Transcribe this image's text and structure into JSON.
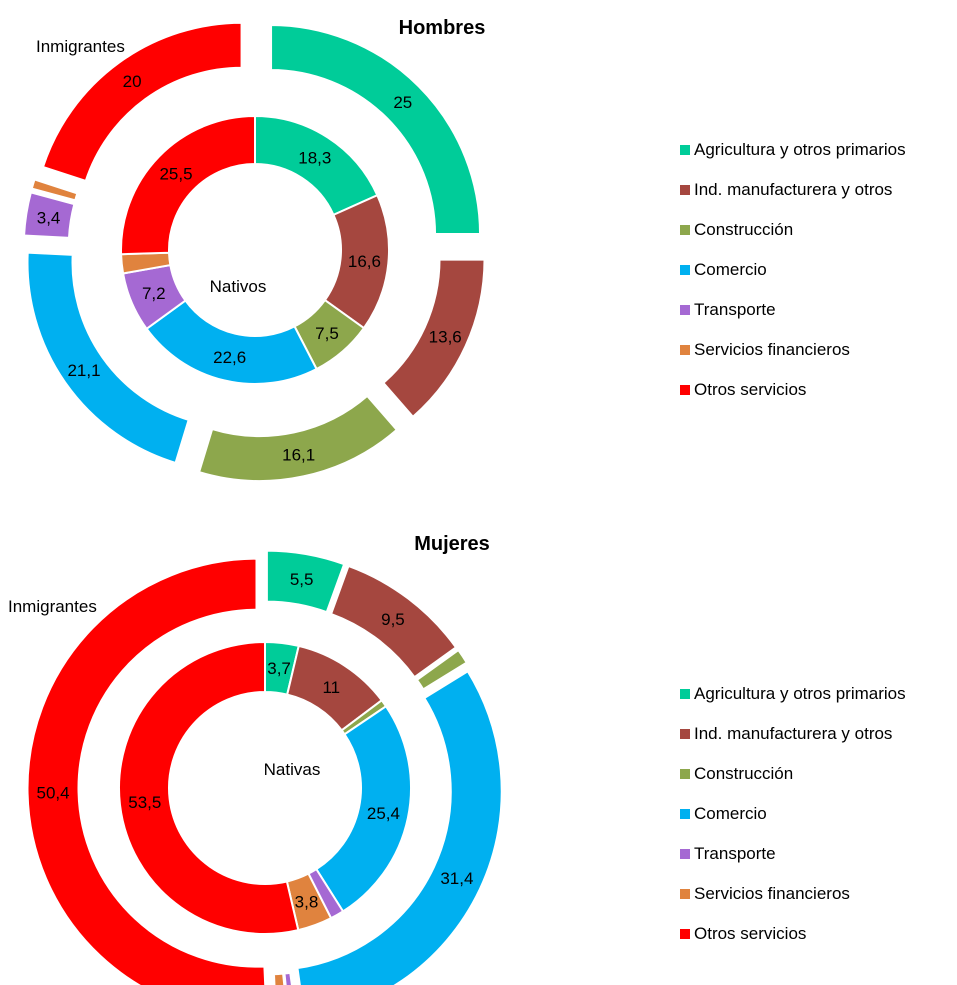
{
  "chart_data": [
    {
      "type": "donut",
      "title": "Hombres",
      "inner_ring_label": "Nativos",
      "outer_ring_label": "Inmigrantes",
      "categories": [
        "Agricultura y otros primarios",
        "Ind. manufacturera y otros",
        "Construcción",
        "Comercio",
        "Transporte",
        "Servicios financieros",
        "Otros servicios"
      ],
      "colors": [
        "#00CC99",
        "#A5473F",
        "#8DA74C",
        "#00B0F0",
        "#A569D3",
        "#E0833E",
        "#FF0000"
      ],
      "series": [
        {
          "name": "Nativos",
          "ring": "inner",
          "values": [
            18.3,
            16.6,
            7.5,
            22.6,
            7.2,
            2.3,
            25.5
          ],
          "labels": [
            "18,3",
            "16,6",
            "7,5",
            "22,6",
            "7,2",
            "",
            "25,5"
          ]
        },
        {
          "name": "Inmigrantes",
          "ring": "outer",
          "values": [
            25,
            13.6,
            16.1,
            21.1,
            3.4,
            0.8,
            20
          ],
          "labels": [
            "25",
            "13,6",
            "16,1",
            "21,1",
            "3,4",
            "",
            "20"
          ]
        }
      ],
      "legend": "right"
    },
    {
      "type": "donut",
      "title": "Mujeres",
      "inner_ring_label": "Nativas",
      "outer_ring_label": "Inmigrantes",
      "categories": [
        "Agricultura y otros primarios",
        "Ind. manufacturera y otros",
        "Construcción",
        "Comercio",
        "Transporte",
        "Servicios financieros",
        "Otros servicios"
      ],
      "colors": [
        "#00CC99",
        "#A5473F",
        "#8DA74C",
        "#00B0F0",
        "#A569D3",
        "#E0833E",
        "#FF0000"
      ],
      "series": [
        {
          "name": "Nativas",
          "ring": "inner",
          "values": [
            3.7,
            11,
            0.8,
            25.4,
            1.5,
            3.8,
            53.5
          ],
          "labels": [
            "3,7",
            "11",
            "",
            "25,4",
            "",
            "3,8",
            "53,5"
          ]
        },
        {
          "name": "Inmigrantes",
          "ring": "outer",
          "values": [
            5.5,
            9.5,
            1.1,
            31.4,
            0.6,
            0.9,
            50.4
          ],
          "labels": [
            "5,5",
            "9,5",
            "",
            "31,4",
            "",
            "",
            "50,4"
          ]
        }
      ],
      "legend": "right"
    }
  ]
}
